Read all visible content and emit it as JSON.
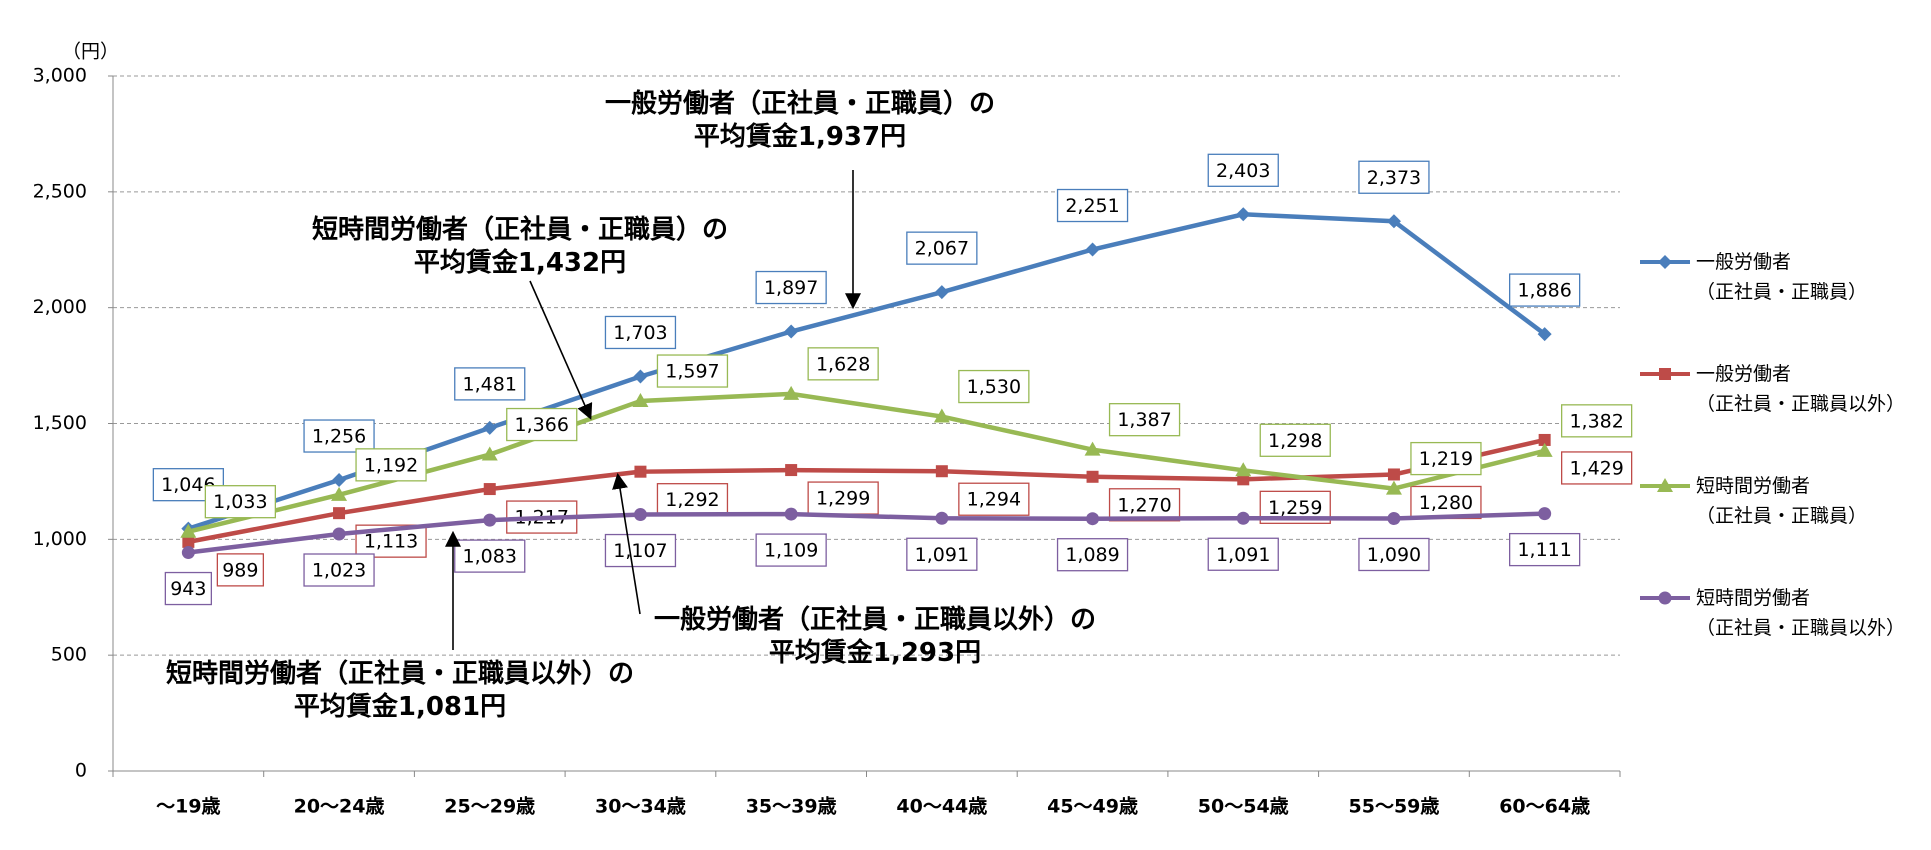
{
  "chart_data": {
    "type": "line",
    "y_unit": "（円）",
    "categories": [
      "～19歳",
      "20～24歳",
      "25～29歳",
      "30～34歳",
      "35～39歳",
      "40～44歳",
      "45～49歳",
      "50～54歳",
      "55～59歳",
      "60～64歳"
    ],
    "ylim": [
      0,
      3000
    ],
    "yticks": [
      0,
      500,
      {
        "value": 1000,
        "label": "1,000"
      },
      {
        "value": 1500,
        "label": "1,500"
      },
      {
        "value": 2000,
        "label": "2,000"
      },
      {
        "value": 2500,
        "label": "2,500"
      },
      {
        "value": 3000,
        "label": "3,000"
      }
    ],
    "grid": true,
    "legend": "right",
    "series": [
      {
        "name": "一般労働者\n（正社員・正職員）",
        "color": "#4a7ebb",
        "marker": "diamond",
        "values": [
          1046,
          1256,
          1481,
          1703,
          1897,
          2067,
          2251,
          2403,
          2373,
          1886
        ],
        "value_labels": [
          "1,046",
          "1,256",
          "1,481",
          "1,703",
          "1,897",
          "2,067",
          "2,251",
          "2,403",
          "2,373",
          "1,886"
        ]
      },
      {
        "name": "一般労働者\n（正社員・正職員以外）",
        "color": "#be4b48",
        "marker": "square",
        "values": [
          989,
          1113,
          1217,
          1292,
          1299,
          1294,
          1270,
          1259,
          1280,
          1429
        ],
        "value_labels": [
          "989",
          "1,113",
          "1,217",
          "1,292",
          "1,299",
          "1,294",
          "1,270",
          "1,259",
          "1,280",
          "1,429"
        ]
      },
      {
        "name": "短時間労働者\n（正社員・正職員）",
        "color": "#98b954",
        "marker": "triangle",
        "values": [
          1033,
          1192,
          1366,
          1597,
          1628,
          1530,
          1387,
          1298,
          1219,
          1382
        ],
        "value_labels": [
          "1,033",
          "1,192",
          "1,366",
          "1,597",
          "1,628",
          "1,530",
          "1,387",
          "1,298",
          "1,219",
          "1,382"
        ]
      },
      {
        "name": "短時間労働者\n（正社員・正職員以外）",
        "color": "#7d5fa0",
        "marker": "circle",
        "values": [
          943,
          1023,
          1083,
          1107,
          1109,
          1091,
          1089,
          1091,
          1090,
          1111
        ],
        "value_labels": [
          "943",
          "1,023",
          "1,083",
          "1,107",
          "1,109",
          "1,091",
          "1,089",
          "1,091",
          "1,090",
          "1,111"
        ]
      }
    ],
    "annotations": [
      "一般労働者（正社員・正職員）の\n平均賃金1,937円",
      "短時間労働者（正社員・正職員）の\n平均賃金1,432円",
      "一般労働者（正社員・正職員以外）の\n平均賃金1,293円",
      "短時間労働者（正社員・正職員以外）の\n平均賃金1,081円"
    ]
  }
}
